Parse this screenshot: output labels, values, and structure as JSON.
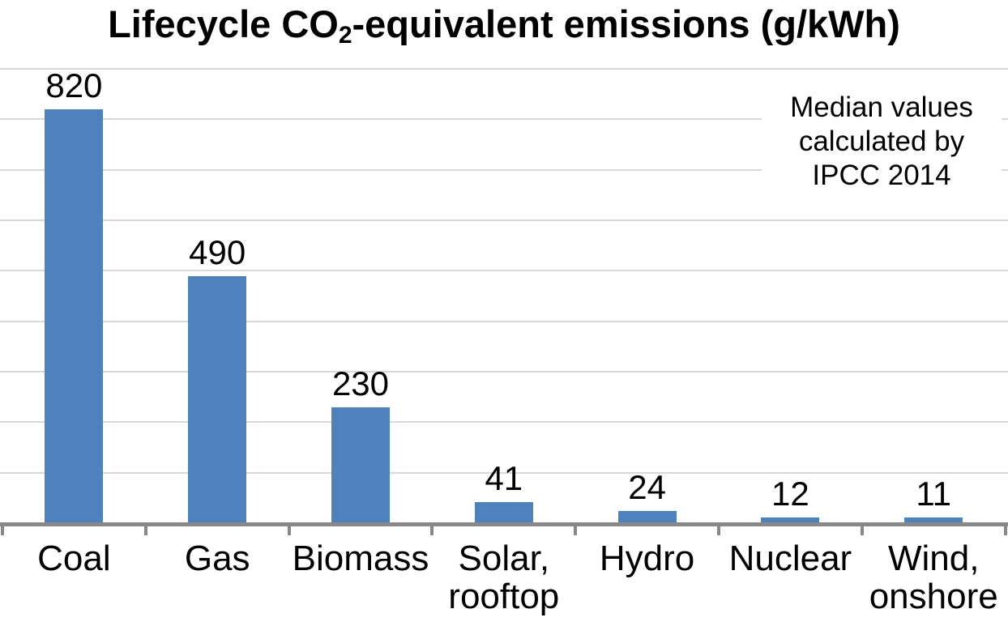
{
  "chart_data": {
    "type": "bar",
    "title": "Lifecycle CO2-equivalent emissions (g/kWh)",
    "title_parts": {
      "pre": "Lifecycle CO",
      "sub": "2",
      "post": "-equivalent emissions (g/kWh)"
    },
    "categories": [
      "Coal",
      "Gas",
      "Biomass",
      "Solar, rooftop",
      "Hydro",
      "Nuclear",
      "Wind, onshore"
    ],
    "category_label_lines": [
      [
        "Coal"
      ],
      [
        "Gas"
      ],
      [
        "Biomass"
      ],
      [
        "Solar,",
        "rooftop"
      ],
      [
        "Hydro"
      ],
      [
        "Nuclear"
      ],
      [
        "Wind,",
        "onshore"
      ]
    ],
    "values": [
      820,
      490,
      230,
      41,
      24,
      12,
      11
    ],
    "value_labels": [
      "820",
      "490",
      "230",
      "41",
      "24",
      "12",
      "11"
    ],
    "xlabel": "",
    "ylabel": "",
    "ylim": [
      0,
      900
    ],
    "gridline_interval": 100,
    "grid": "horizontal-only",
    "legend": false,
    "value_labels_position": "outside-end",
    "annotation_lines": [
      "Median values",
      "calculated by",
      "IPCC 2014"
    ],
    "colors": {
      "bar": "#4F81BD",
      "gridline": "#D9D9D9",
      "axis": "#888888",
      "text": "#000000",
      "background": "#FFFFFF"
    }
  }
}
